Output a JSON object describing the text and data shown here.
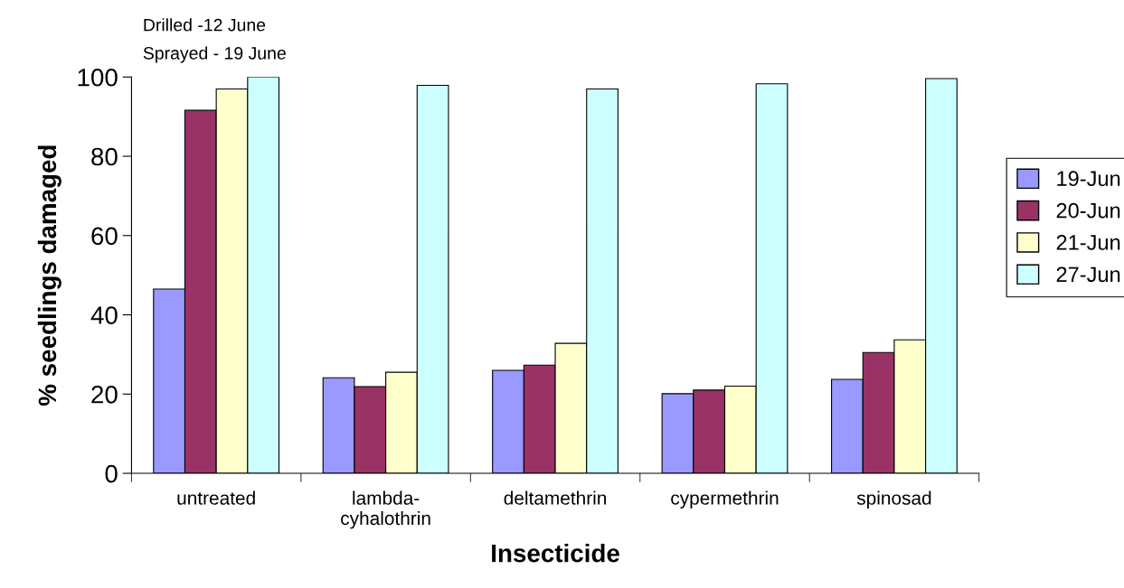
{
  "chart_data": {
    "type": "bar",
    "xlabel": "Insecticide",
    "ylabel": "% seedlings damaged",
    "annotations": [
      "Drilled -12 June",
      "Sprayed - 19 June"
    ],
    "categories": [
      "untreated",
      "lambda-\ncyhalothrin",
      "deltamethrin",
      "cypermethrin",
      "spinosad"
    ],
    "series": [
      {
        "name": "19-Jun",
        "color": "#9999ff",
        "values": [
          46.5,
          24.1,
          26,
          20.1,
          23.7
        ]
      },
      {
        "name": "20-Jun",
        "color": "#993366",
        "values": [
          91.6,
          21.9,
          27.3,
          21,
          30.5
        ]
      },
      {
        "name": "21-Jun",
        "color": "#ffffcc",
        "values": [
          97,
          25.5,
          32.8,
          22,
          33.7
        ]
      },
      {
        "name": "27-Jun",
        "color": "#ccffff",
        "values": [
          100,
          97.9,
          97,
          98.3,
          99.6
        ]
      }
    ],
    "ylim": [
      0,
      100
    ],
    "yticks": [
      0,
      20,
      40,
      60,
      80,
      100
    ],
    "grid": false,
    "legend": "right"
  }
}
